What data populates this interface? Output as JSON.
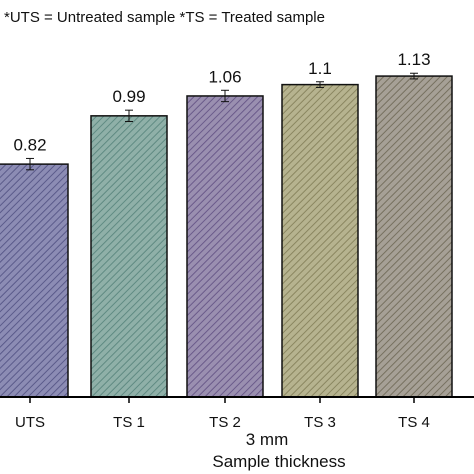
{
  "chart_data": {
    "type": "bar",
    "legend_note": "*UTS = Untreated sample *TS = Treated sample",
    "categories": [
      "UTS",
      "TS 1",
      "TS 2",
      "TS 3",
      "TS 4"
    ],
    "values": [
      0.82,
      0.99,
      1.06,
      1.1,
      1.13
    ],
    "data_labels": [
      "0.82",
      "0.99",
      "1.06",
      "1.1",
      "1.13"
    ],
    "errors": [
      0.02,
      0.02,
      0.02,
      0.01,
      0.01
    ],
    "group_label": "3 mm",
    "xlabel": "Sample thickness",
    "ylabel": "",
    "ylim": [
      0,
      1.25
    ],
    "hatch": "diagonal",
    "colors": [
      "#8c8cb4",
      "#8fb0a8",
      "#9a8fb0",
      "#b6b38f",
      "#a6a096"
    ],
    "hatch_colors": [
      "#5a5a8a",
      "#5f8a82",
      "#6a5a8a",
      "#8a8660",
      "#76705f"
    ]
  }
}
